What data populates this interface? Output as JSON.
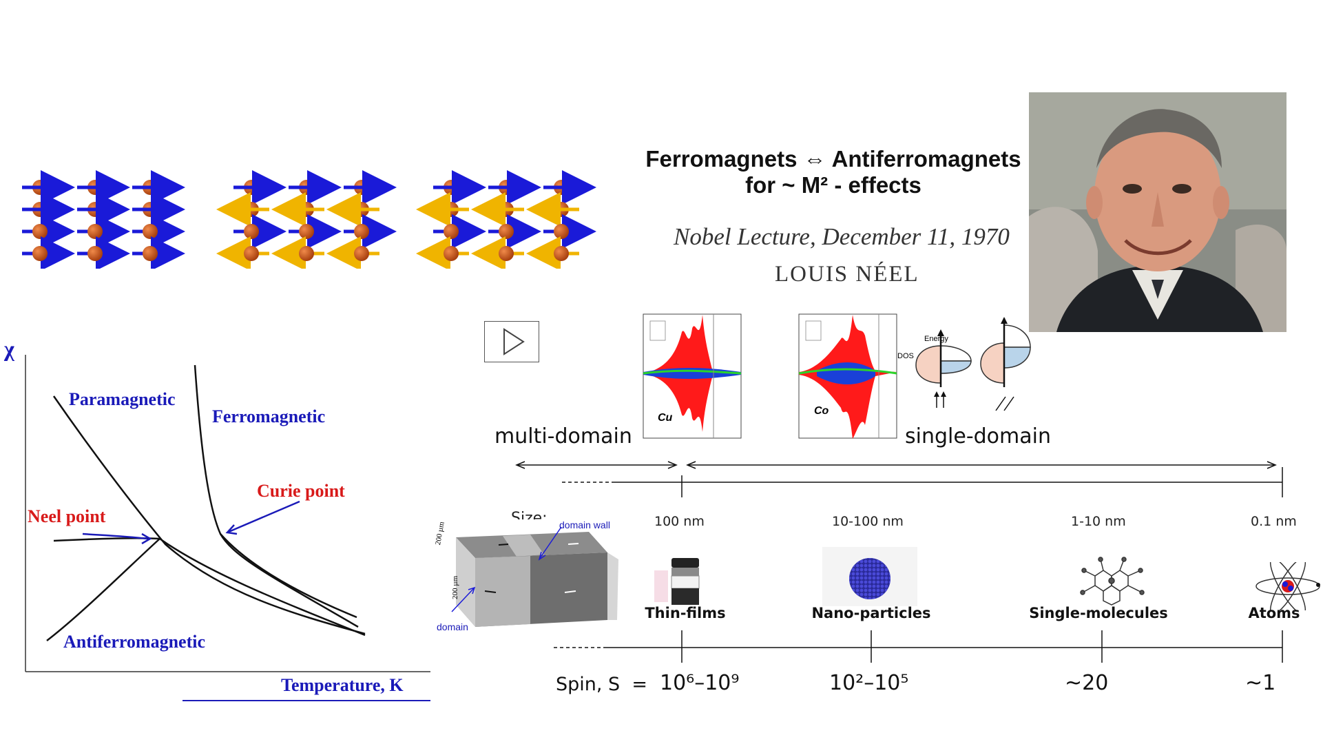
{
  "header": {
    "line1_left": "Ferromagnets",
    "arrow": "⇔",
    "line1_right": "Antiferromagnets",
    "line2": "for ~ M² - effects",
    "lecture": "Nobel Lecture, December 11, 1970",
    "name": "LOUIS NÉEL"
  },
  "chi_plot": {
    "y_label": "χ",
    "x_label": "Temperature, K",
    "labels": {
      "paramagnetic": "Paramagnetic",
      "ferromagnetic": "Ferromagnetic",
      "curie_point": "Curie point",
      "neel_point": "Neel point",
      "antiferromagnetic": "Antiferromagnetic"
    }
  },
  "dos": {
    "cu_label": "Cu",
    "co_label": "Co",
    "energy_label": "Energy",
    "dos_label": "DOS"
  },
  "domain_labels": {
    "multi": "multi-domain",
    "single": "single-domain",
    "domain_wall": "domain wall",
    "domain": "domain",
    "dim1": "200 µm",
    "dim2": "200 µm"
  },
  "scale": {
    "size_label": "Size:",
    "sizes": [
      "100 nm",
      "10-100 nm",
      "1-10 nm",
      "0.1 nm"
    ],
    "categories": [
      "Thin-films",
      "Nano-particles",
      "Single-molecules",
      "Atoms"
    ],
    "spin_label": "Spin, S  =",
    "spins": [
      "10⁶–10⁹",
      "10²–10⁵",
      "~20",
      "~1"
    ]
  },
  "colors": {
    "spin_ball": "#c8521a",
    "arrow_up": "#1a1ad8",
    "arrow_down": "#f0b400",
    "label_blue": "#1a1ab8",
    "label_red": "#d81a1a",
    "dos_fill": "#ff1a1a"
  },
  "icons": [
    "play-icon",
    "spin-lattice",
    "portrait",
    "domain-block",
    "atom-icon",
    "molecule-icon",
    "nanoparticle-icon",
    "thin-film-icon"
  ]
}
